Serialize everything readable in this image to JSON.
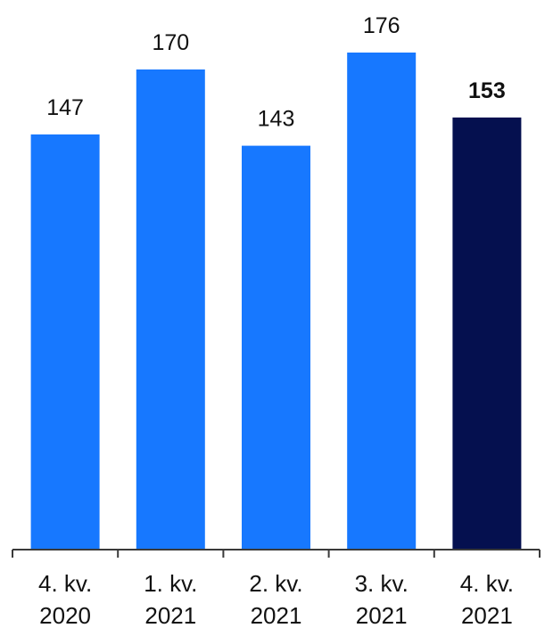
{
  "chart_data": {
    "type": "bar",
    "categories": [
      [
        "4. kv.",
        "2020"
      ],
      [
        "1. kv.",
        "2021"
      ],
      [
        "2. kv.",
        "2021"
      ],
      [
        "3. kv.",
        "2021"
      ],
      [
        "4. kv.",
        "2021"
      ]
    ],
    "values": [
      147,
      170,
      143,
      176,
      153
    ],
    "value_labels": [
      "147",
      "170",
      "143",
      "176",
      "153"
    ],
    "highlight_index": 4,
    "title": "",
    "xlabel": "",
    "ylabel": "",
    "ylim": [
      0,
      176
    ],
    "grid": false,
    "legend": "none"
  },
  "colors": {
    "bar": "#1778FF",
    "bar_highlight": "#05104F",
    "axis": "#3A3A3A",
    "text": "#111111"
  }
}
